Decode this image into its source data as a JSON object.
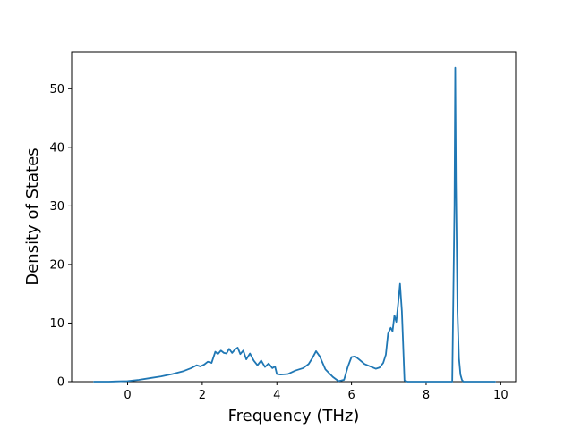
{
  "chart_data": {
    "type": "line",
    "title": "",
    "xlabel": "Frequency (THz)",
    "ylabel": "Density of States",
    "xlim": [
      -1.5,
      10.4
    ],
    "ylim": [
      0,
      56.3
    ],
    "xticks": [
      0,
      2,
      4,
      6,
      8,
      10
    ],
    "yticks": [
      0,
      10,
      20,
      30,
      40,
      50
    ],
    "grid": false,
    "legend": "none",
    "series": [
      {
        "color": "#1f77b4",
        "x": [
          -0.9,
          -0.5,
          0.0,
          0.3,
          0.6,
          0.9,
          1.2,
          1.5,
          1.7,
          1.85,
          1.95,
          2.05,
          2.15,
          2.25,
          2.35,
          2.42,
          2.5,
          2.58,
          2.65,
          2.72,
          2.8,
          2.88,
          2.95,
          3.02,
          3.1,
          3.18,
          3.28,
          3.38,
          3.48,
          3.58,
          3.68,
          3.78,
          3.88,
          3.95,
          4.0,
          4.1,
          4.3,
          4.5,
          4.7,
          4.85,
          4.95,
          5.05,
          5.15,
          5.3,
          5.5,
          5.65,
          5.8,
          5.9,
          6.0,
          6.1,
          6.2,
          6.35,
          6.5,
          6.65,
          6.75,
          6.85,
          6.92,
          6.98,
          7.05,
          7.1,
          7.15,
          7.2,
          7.25,
          7.3,
          7.35,
          7.38,
          7.42,
          7.5,
          8.0,
          8.5,
          8.7,
          8.76,
          8.78,
          8.8,
          8.84,
          8.88,
          8.92,
          8.96,
          9.0,
          9.5,
          9.85
        ],
        "y": [
          0,
          0,
          0.1,
          0.3,
          0.6,
          0.9,
          1.3,
          1.8,
          2.3,
          2.8,
          2.6,
          2.9,
          3.4,
          3.2,
          5.1,
          4.7,
          5.3,
          4.9,
          4.8,
          5.6,
          4.9,
          5.5,
          5.8,
          4.7,
          5.3,
          3.8,
          4.8,
          3.6,
          2.8,
          3.6,
          2.5,
          3.1,
          2.3,
          2.6,
          1.3,
          1.2,
          1.3,
          1.9,
          2.3,
          3.0,
          4.0,
          5.2,
          4.3,
          2.1,
          0.8,
          0.1,
          0.3,
          2.5,
          4.2,
          4.3,
          3.8,
          3.0,
          2.6,
          2.2,
          2.4,
          3.2,
          4.6,
          8.2,
          9.2,
          8.6,
          11.3,
          10.2,
          13.3,
          16.7,
          12.0,
          7.0,
          0.2,
          0,
          0,
          0,
          0,
          30.0,
          53.6,
          34.0,
          12.0,
          4.0,
          1.2,
          0.3,
          0,
          0,
          0
        ]
      }
    ]
  }
}
